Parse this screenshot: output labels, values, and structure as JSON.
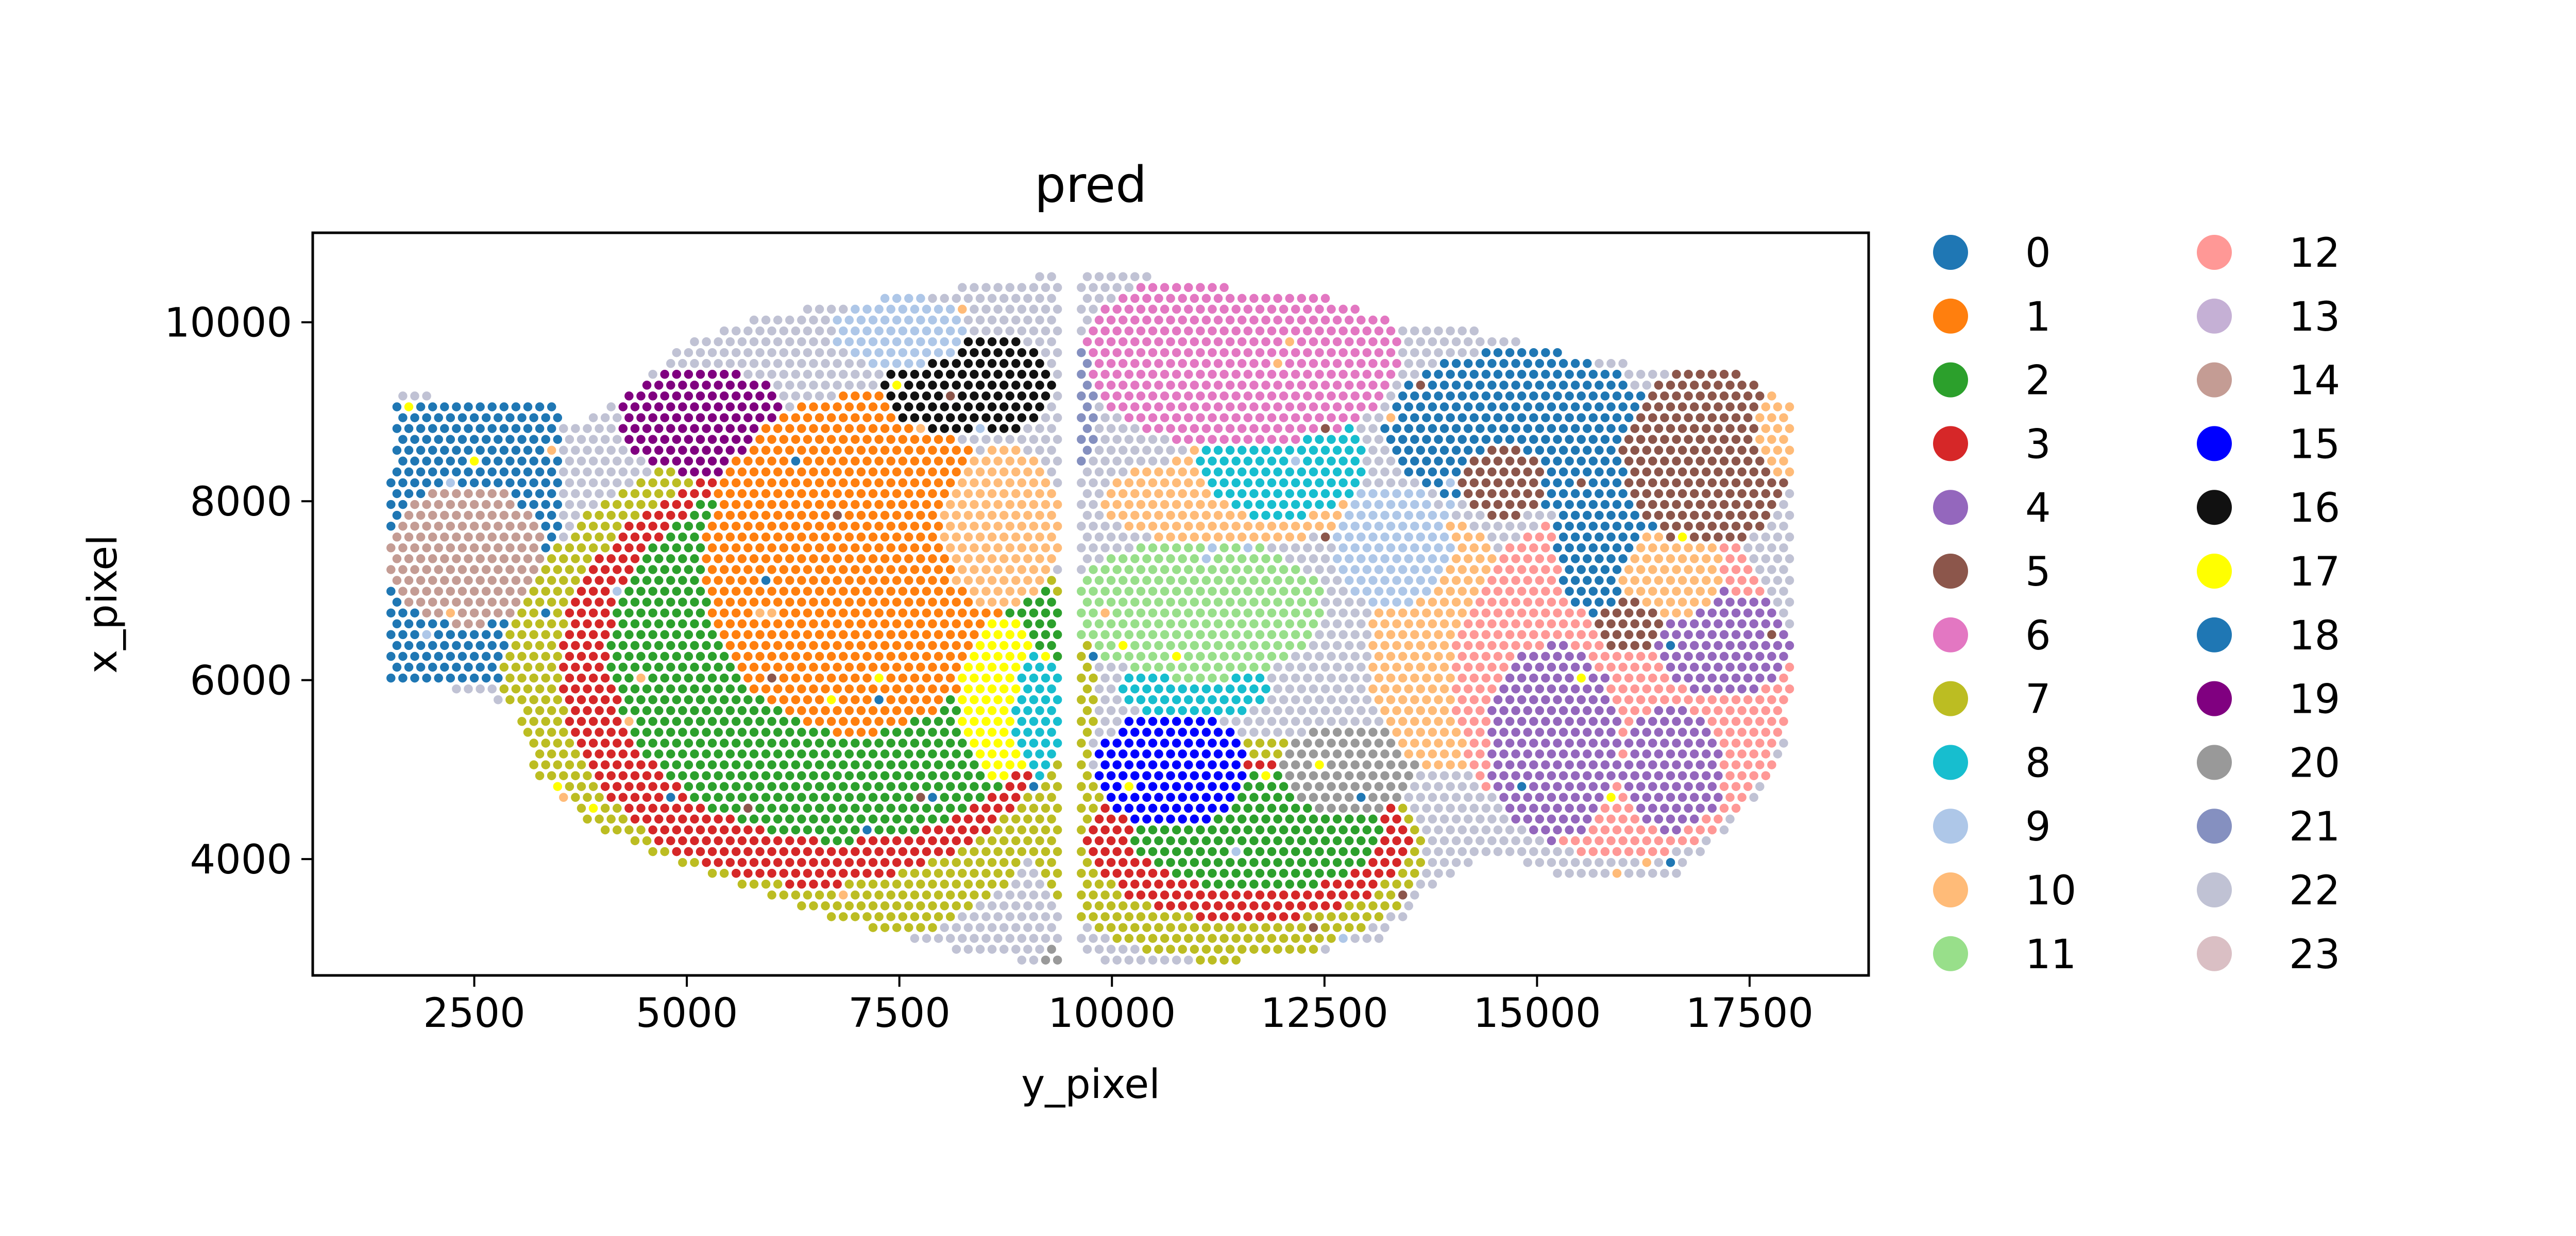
{
  "chart_data": {
    "type": "scatter",
    "title": "pred",
    "xlabel": "y_pixel",
    "ylabel": "x_pixel",
    "xlim": [
      600,
      18900
    ],
    "ylim": [
      11000,
      2700
    ],
    "y_inverted": true,
    "x_ticks": [
      2500,
      5000,
      7500,
      10000,
      12500,
      15000,
      17500
    ],
    "y_ticks": [
      4000,
      6000,
      8000,
      10000
    ],
    "grid": false,
    "legend_position": "right, two columns",
    "legend_columns": 2,
    "spot_spacing": 140,
    "legend": [
      {
        "label": "0",
        "color": "#1f77b4"
      },
      {
        "label": "1",
        "color": "#ff7f0e"
      },
      {
        "label": "2",
        "color": "#2ca02c"
      },
      {
        "label": "3",
        "color": "#d62728"
      },
      {
        "label": "4",
        "color": "#9467bd"
      },
      {
        "label": "5",
        "color": "#8c564b"
      },
      {
        "label": "6",
        "color": "#e377c2"
      },
      {
        "label": "7",
        "color": "#bcbd22"
      },
      {
        "label": "8",
        "color": "#17becf"
      },
      {
        "label": "9",
        "color": "#aec7e8"
      },
      {
        "label": "10",
        "color": "#ffbb78"
      },
      {
        "label": "11",
        "color": "#98df8a"
      },
      {
        "label": "12",
        "color": "#ff9896"
      },
      {
        "label": "13",
        "color": "#c5b0d5"
      },
      {
        "label": "14",
        "color": "#c49c94"
      },
      {
        "label": "15",
        "color": "#0000ff"
      },
      {
        "label": "16",
        "color": "#111111"
      },
      {
        "label": "17",
        "color": "#ffff00"
      },
      {
        "label": "18",
        "color": "#1f77b4"
      },
      {
        "label": "19",
        "color": "#800080"
      },
      {
        "label": "20",
        "color": "#999999"
      },
      {
        "label": "21",
        "color": "#8590c0"
      },
      {
        "label": "22",
        "color": "#c0c2d4"
      },
      {
        "label": "23",
        "color": "#dabfc4"
      }
    ],
    "regions": [
      {
        "cluster": 22,
        "kind": "rect",
        "x": [
          1500,
          18000
        ],
        "y": [
          2800,
          10600
        ]
      },
      {
        "cluster": 18,
        "kind": "rect",
        "x": [
          1500,
          3500
        ],
        "y": [
          6000,
          9100
        ]
      },
      {
        "cluster": 14,
        "kind": "ellipse",
        "cx": 2400,
        "cy": 7400,
        "rx": 900,
        "ry": 800
      },
      {
        "cluster": 7,
        "kind": "ellipse",
        "cx": 6300,
        "cy": 5800,
        "rx": 3500,
        "ry": 2900
      },
      {
        "cluster": 7,
        "kind": "ellipse",
        "cx": 11400,
        "cy": 4100,
        "rx": 2300,
        "ry": 1250
      },
      {
        "cluster": 3,
        "kind": "ellipse",
        "cx": 6500,
        "cy": 6100,
        "rx": 3000,
        "ry": 2400
      },
      {
        "cluster": 3,
        "kind": "ellipse",
        "cx": 11600,
        "cy": 4200,
        "rx": 1900,
        "ry": 900
      },
      {
        "cluster": 2,
        "kind": "ellipse",
        "cx": 6800,
        "cy": 6300,
        "rx": 2700,
        "ry": 2100
      },
      {
        "cluster": 2,
        "kind": "ellipse",
        "cx": 11700,
        "cy": 4300,
        "rx": 1500,
        "ry": 650
      },
      {
        "cluster": 19,
        "kind": "ellipse",
        "cx": 5200,
        "cy": 8900,
        "rx": 1000,
        "ry": 600
      },
      {
        "cluster": 1,
        "kind": "ellipse",
        "cx": 7000,
        "cy": 7300,
        "rx": 1800,
        "ry": 1900
      },
      {
        "cluster": 17,
        "kind": "ellipse",
        "cx": 8700,
        "cy": 5800,
        "rx": 500,
        "ry": 900
      },
      {
        "cluster": 10,
        "kind": "ellipse",
        "cx": 8700,
        "cy": 7700,
        "rx": 700,
        "ry": 900
      },
      {
        "cluster": 16,
        "kind": "ellipse",
        "cx": 8300,
        "cy": 9300,
        "rx": 1000,
        "ry": 600
      },
      {
        "cluster": 8,
        "kind": "ellipse",
        "cx": 9150,
        "cy": 5600,
        "rx": 300,
        "ry": 700
      },
      {
        "cluster": 15,
        "kind": "ellipse",
        "cx": 10700,
        "cy": 5000,
        "rx": 900,
        "ry": 650
      },
      {
        "cluster": 8,
        "kind": "ellipse",
        "cx": 11000,
        "cy": 5900,
        "rx": 900,
        "ry": 350
      },
      {
        "cluster": 20,
        "kind": "ellipse",
        "cx": 12800,
        "cy": 5000,
        "rx": 800,
        "ry": 500
      },
      {
        "cluster": 11,
        "kind": "ellipse",
        "cx": 11000,
        "cy": 6800,
        "rx": 1500,
        "ry": 800
      },
      {
        "cluster": 10,
        "kind": "ellipse",
        "cx": 11400,
        "cy": 8000,
        "rx": 1500,
        "ry": 500
      },
      {
        "cluster": 8,
        "kind": "ellipse",
        "cx": 12000,
        "cy": 8500,
        "rx": 1000,
        "ry": 700
      },
      {
        "cluster": 6,
        "kind": "ellipse",
        "cx": 11500,
        "cy": 9600,
        "rx": 1900,
        "ry": 1000
      },
      {
        "cluster": 10,
        "kind": "ellipse",
        "cx": 13900,
        "cy": 6400,
        "rx": 900,
        "ry": 1400
      },
      {
        "cluster": 12,
        "kind": "ellipse",
        "cx": 16000,
        "cy": 6000,
        "rx": 2000,
        "ry": 2000
      },
      {
        "cluster": 4,
        "kind": "ellipse",
        "cx": 15200,
        "cy": 5300,
        "rx": 800,
        "ry": 1100
      },
      {
        "cluster": 4,
        "kind": "ellipse",
        "cx": 16600,
        "cy": 5000,
        "rx": 600,
        "ry": 700
      },
      {
        "cluster": 4,
        "kind": "ellipse",
        "cx": 17200,
        "cy": 6400,
        "rx": 800,
        "ry": 600
      },
      {
        "cluster": 18,
        "kind": "ellipse",
        "cx": 14800,
        "cy": 8800,
        "rx": 1600,
        "ry": 900
      },
      {
        "cluster": 18,
        "kind": "ellipse",
        "cx": 15900,
        "cy": 7600,
        "rx": 700,
        "ry": 1000
      },
      {
        "cluster": 10,
        "kind": "ellipse",
        "cx": 16600,
        "cy": 7200,
        "rx": 600,
        "ry": 500
      },
      {
        "cluster": 5,
        "kind": "ellipse",
        "cx": 17000,
        "cy": 8500,
        "rx": 1000,
        "ry": 1000
      },
      {
        "cluster": 5,
        "kind": "ellipse",
        "cx": 14600,
        "cy": 8200,
        "rx": 500,
        "ry": 400
      },
      {
        "cluster": 5,
        "kind": "ellipse",
        "cx": 16100,
        "cy": 6600,
        "rx": 400,
        "ry": 300
      },
      {
        "cluster": 10,
        "kind": "ellipse",
        "cx": 17900,
        "cy": 8800,
        "rx": 300,
        "ry": 500
      },
      {
        "cluster": 9,
        "kind": "ellipse",
        "cx": 13300,
        "cy": 7500,
        "rx": 700,
        "ry": 700
      },
      {
        "cluster": 21,
        "kind": "ellipse",
        "cx": 9600,
        "cy": 9000,
        "rx": 200,
        "ry": 800
      },
      {
        "cluster": 9,
        "kind": "ellipse",
        "cx": 7500,
        "cy": 9900,
        "rx": 800,
        "ry": 400
      },
      {
        "cluster": 20,
        "kind": "ellipse",
        "cx": 9400,
        "cy": 2900,
        "rx": 300,
        "ry": 150
      }
    ]
  }
}
